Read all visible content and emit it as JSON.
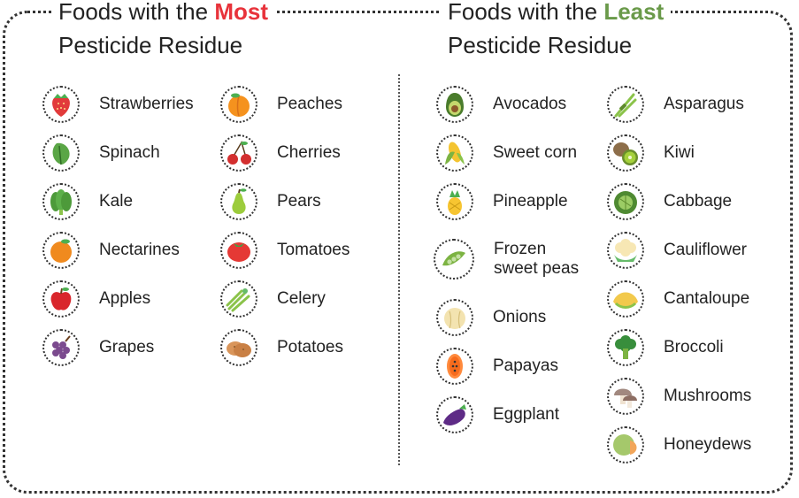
{
  "colors": {
    "most_accent": "#e8333b",
    "least_accent": "#6a9a4a"
  },
  "left": {
    "title_prefix": "Foods with the ",
    "title_highlight": "Most",
    "title_line2": "Pesticide Residue",
    "column1": [
      {
        "label": "Strawberries",
        "icon": "strawberry-icon"
      },
      {
        "label": "Spinach",
        "icon": "spinach-icon"
      },
      {
        "label": "Kale",
        "icon": "kale-icon"
      },
      {
        "label": "Nectarines",
        "icon": "nectarine-icon"
      },
      {
        "label": "Apples",
        "icon": "apple-icon"
      },
      {
        "label": "Grapes",
        "icon": "grapes-icon"
      }
    ],
    "column2": [
      {
        "label": "Peaches",
        "icon": "peach-icon"
      },
      {
        "label": "Cherries",
        "icon": "cherries-icon"
      },
      {
        "label": "Pears",
        "icon": "pear-icon"
      },
      {
        "label": "Tomatoes",
        "icon": "tomato-icon"
      },
      {
        "label": "Celery",
        "icon": "celery-icon"
      },
      {
        "label": "Potatoes",
        "icon": "potato-icon"
      }
    ]
  },
  "right": {
    "title_prefix": "Foods with the ",
    "title_highlight": "Least",
    "title_line2": "Pesticide Residue",
    "column1": [
      {
        "label": "Avocados",
        "icon": "avocado-icon"
      },
      {
        "label": "Sweet corn",
        "icon": "corn-icon"
      },
      {
        "label": "Pineapple",
        "icon": "pineapple-icon"
      },
      {
        "label": "Frozen",
        "label2": "sweet peas",
        "icon": "peas-icon"
      },
      {
        "label": "Onions",
        "icon": "onion-icon"
      },
      {
        "label": "Papayas",
        "icon": "papaya-icon"
      },
      {
        "label": "Eggplant",
        "icon": "eggplant-icon"
      }
    ],
    "column2": [
      {
        "label": "Asparagus",
        "icon": "asparagus-icon"
      },
      {
        "label": "Kiwi",
        "icon": "kiwi-icon"
      },
      {
        "label": "Cabbage",
        "icon": "cabbage-icon"
      },
      {
        "label": "Cauliflower",
        "icon": "cauliflower-icon"
      },
      {
        "label": "Cantaloupe",
        "icon": "cantaloupe-icon"
      },
      {
        "label": "Broccoli",
        "icon": "broccoli-icon"
      },
      {
        "label": "Mushrooms",
        "icon": "mushroom-icon"
      },
      {
        "label": "Honeydews",
        "icon": "honeydew-icon"
      }
    ]
  }
}
